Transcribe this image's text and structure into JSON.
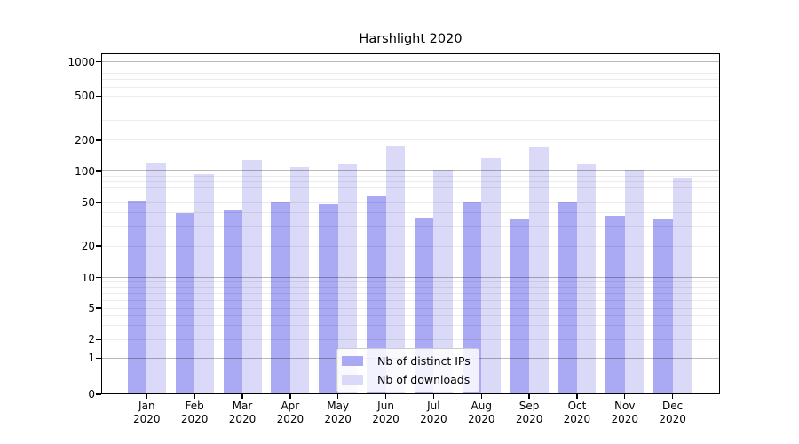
{
  "chart_data": {
    "type": "bar",
    "title": "Harshlight 2020",
    "categories": [
      "Jan 2020",
      "Feb 2020",
      "Mar 2020",
      "Apr 2020",
      "May 2020",
      "Jun 2020",
      "Jul 2020",
      "Aug 2020",
      "Sep 2020",
      "Oct 2020",
      "Nov 2020",
      "Dec 2020"
    ],
    "series": [
      {
        "name": "Nb of distinct IPs",
        "color": "#a9a9f4",
        "values": [
          52,
          40,
          43,
          51,
          48,
          58,
          36,
          51,
          35,
          50,
          38,
          35
        ]
      },
      {
        "name": "Nb of downloads",
        "color": "#dadaf8",
        "values": [
          120,
          94,
          129,
          110,
          116,
          177,
          105,
          135,
          170,
          118,
          103,
          86
        ]
      }
    ],
    "yscale": "symlog",
    "yticks": [
      0,
      1,
      2,
      5,
      10,
      20,
      50,
      100,
      200,
      500,
      1000
    ],
    "ylim": [
      0,
      1200
    ],
    "grid": "horizontal major and minor gridlines, drawn over bars",
    "legend_position": "lower center",
    "background_color": "#ffffff"
  }
}
